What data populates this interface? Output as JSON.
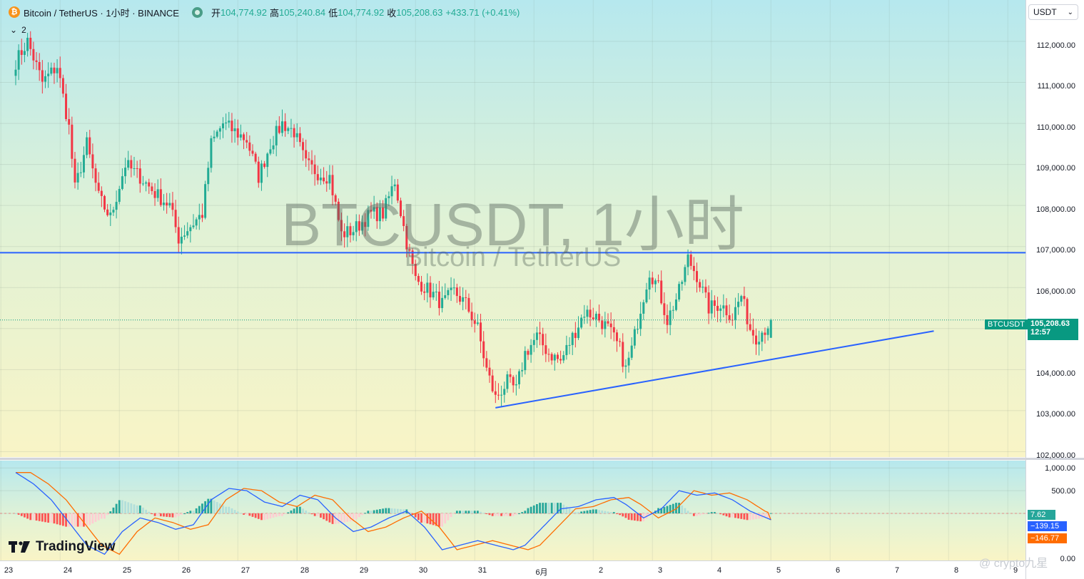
{
  "header": {
    "coin_badge": "₿",
    "symbol_title": "Bitcoin / TetherUS · 1小时 · BINANCE",
    "open_label": "开",
    "open_value": "104,774.92",
    "high_label": "高",
    "high_value": "105,240.84",
    "low_label": "低",
    "low_value": "104,774.92",
    "close_label": "收",
    "close_value": "105,208.63",
    "change_value": "+433.71 (+0.41%)",
    "indicators_count": "2",
    "currency_select": "USDT"
  },
  "watermark": {
    "main": "BTCUSDT, 1小时",
    "sub": "Bitcoin / TetherUS"
  },
  "price_axis": {
    "labels": [
      "112,000.00",
      "111,000.00",
      "110,000.00",
      "109,000.00",
      "108,000.00",
      "107,000.00",
      "106,000.00",
      "104,000.00",
      "103,000.00",
      "102,000.00"
    ],
    "current_symbol_tag": "BTCUSDT",
    "current_price_tag": "105,208.63",
    "countdown_tag": "12:57"
  },
  "macd_axis": {
    "labels": [
      "1,000.00",
      "500.00",
      "0.00"
    ],
    "histogram_tag": "7.62",
    "macd_tag": "−139.15",
    "signal_tag": "−146.77"
  },
  "time_axis": {
    "labels": [
      "23",
      "24",
      "25",
      "26",
      "27",
      "28",
      "29",
      "30",
      "31",
      "6月",
      "2",
      "3",
      "4",
      "5",
      "6",
      "7",
      "8",
      "9"
    ]
  },
  "branding": {
    "logo_text": "TradingView"
  },
  "credit": {
    "text": "@ crypto九星"
  },
  "colors": {
    "up": "#22ab94",
    "down": "#f23645",
    "trendline": "#2962ff",
    "macd": "#2962ff",
    "signal": "#ff6d00",
    "price_tag": "#089981"
  },
  "chart_data": {
    "type": "candlestick",
    "title": "BTCUSDT, 1小时",
    "series_name": "Bitcoin / TetherUS",
    "x_unit": "hours",
    "ylim": [
      101700,
      112800
    ],
    "anchors": [
      [
        0,
        111500
      ],
      [
        4,
        112000
      ],
      [
        9,
        111000
      ],
      [
        14,
        111400
      ],
      [
        18,
        109900
      ],
      [
        20,
        108400
      ],
      [
        24,
        109500
      ],
      [
        28,
        108200
      ],
      [
        32,
        107700
      ],
      [
        37,
        109000
      ],
      [
        42,
        108700
      ],
      [
        47,
        108300
      ],
      [
        52,
        108000
      ],
      [
        55,
        107200
      ],
      [
        59,
        107500
      ],
      [
        63,
        107800
      ],
      [
        66,
        109500
      ],
      [
        70,
        110000
      ],
      [
        74,
        109800
      ],
      [
        78,
        109600
      ],
      [
        82,
        108700
      ],
      [
        86,
        109500
      ],
      [
        90,
        110000
      ],
      [
        94,
        109800
      ],
      [
        98,
        109000
      ],
      [
        102,
        108800
      ],
      [
        106,
        108700
      ],
      [
        110,
        107300
      ],
      [
        114,
        107400
      ],
      [
        120,
        107800
      ],
      [
        124,
        107800
      ],
      [
        128,
        108600
      ],
      [
        132,
        107100
      ],
      [
        135,
        106200
      ],
      [
        140,
        105900
      ],
      [
        144,
        105600
      ],
      [
        148,
        105900
      ],
      [
        152,
        105600
      ],
      [
        156,
        105000
      ],
      [
        159,
        104000
      ],
      [
        162,
        103300
      ],
      [
        166,
        103700
      ],
      [
        169,
        103500
      ],
      [
        172,
        104400
      ],
      [
        176,
        104800
      ],
      [
        180,
        104400
      ],
      [
        184,
        104200
      ],
      [
        188,
        104800
      ],
      [
        192,
        105400
      ],
      [
        196,
        105300
      ],
      [
        200,
        105000
      ],
      [
        204,
        104500
      ],
      [
        206,
        104000
      ],
      [
        208,
        104500
      ],
      [
        211,
        105500
      ],
      [
        214,
        106400
      ],
      [
        217,
        106000
      ],
      [
        220,
        105200
      ],
      [
        224,
        105900
      ],
      [
        227,
        106700
      ],
      [
        230,
        106300
      ],
      [
        234,
        105500
      ],
      [
        238,
        105600
      ],
      [
        242,
        105300
      ],
      [
        245,
        105800
      ],
      [
        248,
        105000
      ],
      [
        250,
        104800
      ],
      [
        253,
        105000
      ],
      [
        255,
        105208
      ]
    ],
    "trendline_horizontal": {
      "y": 106850,
      "x": [
        -9,
        341
      ]
    },
    "trendline_rising": {
      "from": [
        162,
        103070
      ],
      "to": [
        310,
        104940
      ]
    },
    "time_ticks": [
      {
        "label": "23",
        "x": -5
      },
      {
        "label": "24",
        "x": 15
      },
      {
        "label": "25",
        "x": 35
      },
      {
        "label": "26",
        "x": 55
      },
      {
        "label": "27",
        "x": 75
      },
      {
        "label": "28",
        "x": 95
      },
      {
        "label": "29",
        "x": 115
      },
      {
        "label": "30",
        "x": 135
      },
      {
        "label": "31",
        "x": 155
      },
      {
        "label": "6月",
        "x": 175
      },
      {
        "label": "2",
        "x": 195
      },
      {
        "label": "3",
        "x": 215
      },
      {
        "label": "4",
        "x": 235
      },
      {
        "label": "5",
        "x": 255
      },
      {
        "label": "6",
        "x": 275
      },
      {
        "label": "7",
        "x": 295
      },
      {
        "label": "8",
        "x": 315
      },
      {
        "label": "9",
        "x": 335
      }
    ],
    "macd": {
      "ylim": [
        -1300,
        1150
      ],
      "macd_anchors": [
        [
          0,
          900
        ],
        [
          6,
          650
        ],
        [
          12,
          300
        ],
        [
          18,
          -200
        ],
        [
          24,
          -700
        ],
        [
          30,
          -900
        ],
        [
          36,
          -400
        ],
        [
          42,
          -100
        ],
        [
          48,
          -200
        ],
        [
          54,
          -350
        ],
        [
          60,
          -250
        ],
        [
          66,
          300
        ],
        [
          72,
          550
        ],
        [
          78,
          500
        ],
        [
          84,
          250
        ],
        [
          90,
          150
        ],
        [
          96,
          400
        ],
        [
          102,
          300
        ],
        [
          108,
          -100
        ],
        [
          114,
          -400
        ],
        [
          120,
          -300
        ],
        [
          126,
          -100
        ],
        [
          132,
          50
        ],
        [
          138,
          -300
        ],
        [
          144,
          -800
        ],
        [
          150,
          -700
        ],
        [
          156,
          -600
        ],
        [
          162,
          -700
        ],
        [
          168,
          -800
        ],
        [
          172,
          -700
        ],
        [
          178,
          -300
        ],
        [
          184,
          100
        ],
        [
          190,
          150
        ],
        [
          196,
          300
        ],
        [
          202,
          350
        ],
        [
          206,
          200
        ],
        [
          212,
          -100
        ],
        [
          218,
          100
        ],
        [
          224,
          500
        ],
        [
          230,
          400
        ],
        [
          236,
          450
        ],
        [
          242,
          300
        ],
        [
          248,
          50
        ],
        [
          255,
          -139
        ]
      ],
      "signal_lag": 5,
      "current": {
        "histogram": 7.62,
        "macd": -139.15,
        "signal": -146.77
      }
    }
  }
}
